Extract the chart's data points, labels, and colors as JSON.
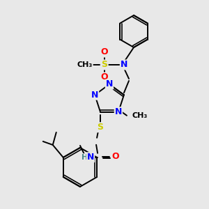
{
  "bg_color": "#e8e8e8",
  "atom_colors": {
    "N": "#0000ff",
    "O": "#ff0000",
    "S": "#cccc00",
    "C": "#000000",
    "H": "#4a8a8a"
  },
  "bond_color": "#000000",
  "figsize": [
    3.0,
    3.0
  ],
  "dpi": 100,
  "lw": 1.4,
  "fs": 9.0,
  "fs_small": 8.0
}
